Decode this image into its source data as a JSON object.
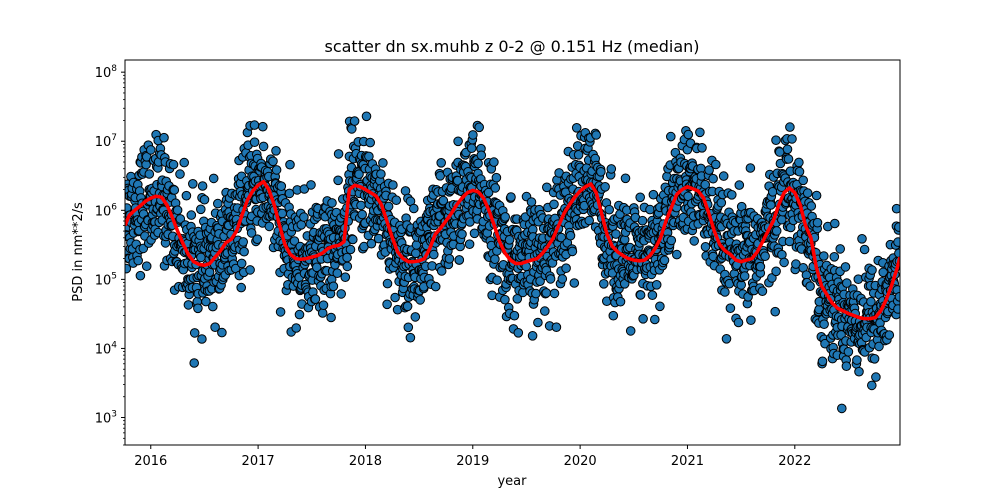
{
  "chart_data": {
    "type": "scatter",
    "title": "scatter dn sx.muhb z 0-2 @ 0.151 Hz (median)",
    "xlabel": "year",
    "ylabel": "PSD in nm**2/s",
    "xlim": [
      2015.76,
      2022.98
    ],
    "ylim": [
      400,
      150000000
    ],
    "yscale": "log",
    "grid": false,
    "x_ticks": [
      "2016",
      "2017",
      "2018",
      "2019",
      "2020",
      "2021",
      "2022"
    ],
    "y_ticks": [
      {
        "value": 1000,
        "base": "10",
        "exp": "3"
      },
      {
        "value": 10000,
        "base": "10",
        "exp": "4"
      },
      {
        "value": 100000,
        "base": "10",
        "exp": "5"
      },
      {
        "value": 1000000,
        "base": "10",
        "exp": "6"
      },
      {
        "value": 10000000,
        "base": "10",
        "exp": "7"
      },
      {
        "value": 100000000,
        "base": "10",
        "exp": "8"
      }
    ],
    "scatter_color": "#1f77b4",
    "scatter_edge_color": "#000000",
    "median_color": "#ff0000",
    "median_series": {
      "x": [
        2015.76,
        2015.8,
        2015.85,
        2015.9,
        2015.95,
        2016.0,
        2016.05,
        2016.1,
        2016.15,
        2016.2,
        2016.25,
        2016.3,
        2016.35,
        2016.4,
        2016.45,
        2016.5,
        2016.55,
        2016.6,
        2016.65,
        2016.7,
        2016.75,
        2016.8,
        2016.85,
        2016.9,
        2016.95,
        2017.0,
        2017.05,
        2017.1,
        2017.15,
        2017.2,
        2017.25,
        2017.3,
        2017.35,
        2017.4,
        2017.45,
        2017.5,
        2017.55,
        2017.6,
        2017.65,
        2017.7,
        2017.75,
        2017.8,
        2017.85,
        2017.9,
        2017.95,
        2018.0,
        2018.05,
        2018.1,
        2018.15,
        2018.2,
        2018.25,
        2018.3,
        2018.35,
        2018.4,
        2018.45,
        2018.5,
        2018.55,
        2018.6,
        2018.65,
        2018.7,
        2018.75,
        2018.8,
        2018.85,
        2018.9,
        2018.95,
        2019.0,
        2019.05,
        2019.1,
        2019.15,
        2019.2,
        2019.25,
        2019.3,
        2019.35,
        2019.4,
        2019.45,
        2019.5,
        2019.55,
        2019.6,
        2019.65,
        2019.7,
        2019.75,
        2019.8,
        2019.85,
        2019.9,
        2019.95,
        2020.0,
        2020.05,
        2020.1,
        2020.15,
        2020.2,
        2020.25,
        2020.3,
        2020.35,
        2020.4,
        2020.45,
        2020.5,
        2020.55,
        2020.6,
        2020.65,
        2020.7,
        2020.75,
        2020.8,
        2020.85,
        2020.9,
        2020.95,
        2021.0,
        2021.05,
        2021.1,
        2021.15,
        2021.2,
        2021.25,
        2021.3,
        2021.35,
        2021.4,
        2021.45,
        2021.5,
        2021.55,
        2021.6,
        2021.65,
        2021.7,
        2021.75,
        2021.8,
        2021.85,
        2021.9,
        2021.95,
        2022.0,
        2022.05,
        2022.1,
        2022.15,
        2022.2,
        2022.25,
        2022.3,
        2022.35,
        2022.4,
        2022.45,
        2022.5,
        2022.55,
        2022.6,
        2022.65,
        2022.7,
        2022.75,
        2022.8,
        2022.85,
        2022.9,
        2022.95,
        2022.98
      ],
      "y": [
        600000,
        850000,
        1000000,
        1150000,
        1350000,
        1500000,
        1600000,
        1550000,
        1200000,
        800000,
        500000,
        330000,
        230000,
        180000,
        165000,
        160000,
        170000,
        210000,
        260000,
        340000,
        380000,
        500000,
        850000,
        1400000,
        1900000,
        2300000,
        2600000,
        2000000,
        1200000,
        600000,
        320000,
        230000,
        200000,
        195000,
        200000,
        210000,
        220000,
        240000,
        280000,
        300000,
        310000,
        350000,
        2000000,
        2300000,
        2200000,
        2000000,
        1800000,
        1600000,
        1200000,
        700000,
        400000,
        250000,
        200000,
        180000,
        180000,
        185000,
        200000,
        280000,
        450000,
        550000,
        700000,
        900000,
        1200000,
        1500000,
        1800000,
        1950000,
        1850000,
        1500000,
        1000000,
        600000,
        350000,
        240000,
        190000,
        170000,
        170000,
        180000,
        190000,
        200000,
        240000,
        300000,
        400000,
        600000,
        900000,
        1200000,
        1550000,
        1900000,
        2200000,
        2400000,
        1800000,
        900000,
        450000,
        300000,
        250000,
        220000,
        200000,
        190000,
        185000,
        190000,
        220000,
        280000,
        400000,
        700000,
        1100000,
        1700000,
        2000000,
        2200000,
        2050000,
        1900000,
        1500000,
        900000,
        500000,
        320000,
        260000,
        230000,
        190000,
        180000,
        190000,
        200000,
        250000,
        350000,
        500000,
        700000,
        1200000,
        1800000,
        2100000,
        1800000,
        1200000,
        600000,
        400000,
        150000,
        80000,
        60000,
        45000,
        38000,
        35000,
        32000,
        30000,
        28000,
        27000,
        27000,
        28000,
        35000,
        50000,
        80000,
        140000,
        210000
      ]
    }
  }
}
